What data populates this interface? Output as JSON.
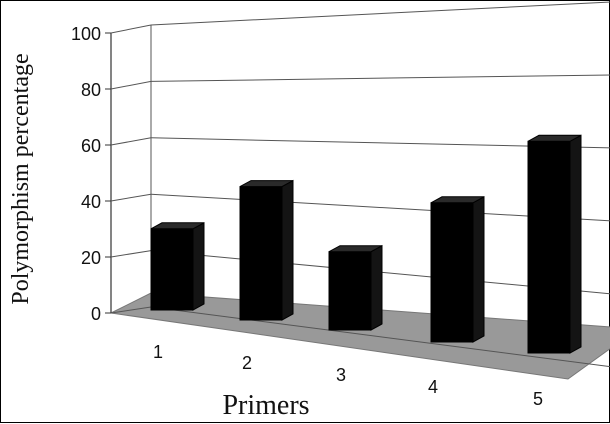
{
  "chart_data": {
    "type": "bar",
    "style": "3d",
    "categories": [
      "1",
      "2",
      "3",
      "4",
      "5"
    ],
    "values": [
      28,
      46,
      27,
      48,
      73
    ],
    "xlabel": "Primers",
    "ylabel": "Polymorphism percentage",
    "ylim": [
      0,
      100
    ],
    "yticks": [
      "0",
      "20",
      "40",
      "60",
      "80",
      "100"
    ],
    "grid": true,
    "bar_color": "#000000",
    "floor_color": "#999999",
    "gridline_color": "#555555"
  }
}
